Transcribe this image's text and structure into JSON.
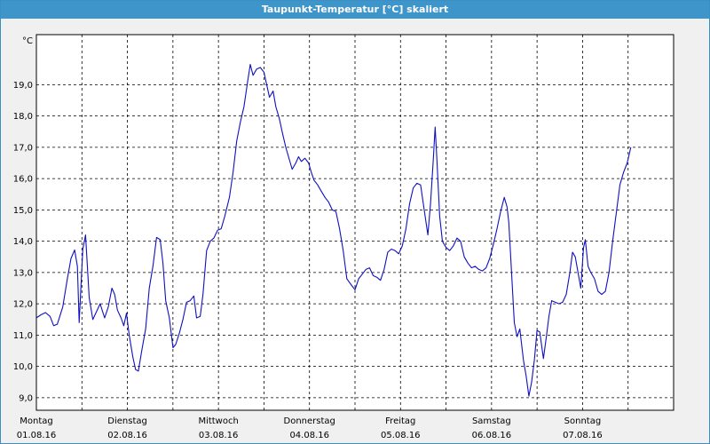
{
  "window": {
    "title": "Taupunkt-Temperatur [°C] skaliert"
  },
  "colors": {
    "line": "#1010c0",
    "title_bg": "#3e95c9",
    "plot_bg": "#ffffff",
    "frame_bg": "#f0f0f0"
  },
  "chart_data": {
    "type": "line",
    "title": "Taupunkt-Temperatur [°C] skaliert",
    "ylabel": "°C",
    "ylim": [
      8.6,
      20.6
    ],
    "xlim": [
      0,
      7
    ],
    "grid": true,
    "yticks": [
      "9,0",
      "10,0",
      "11,0",
      "12,0",
      "13,0",
      "14,0",
      "15,0",
      "16,0",
      "17,0",
      "18,0",
      "19,0"
    ],
    "ytick_values": [
      9,
      10,
      11,
      12,
      13,
      14,
      15,
      16,
      17,
      18,
      19
    ],
    "xticks": [
      {
        "day": "Montag",
        "date": "01.08.16",
        "at": 0
      },
      {
        "day": "Dienstag",
        "date": "02.08.16",
        "at": 1
      },
      {
        "day": "Mittwoch",
        "date": "03.08.16",
        "at": 2
      },
      {
        "day": "Donnerstag",
        "date": "04.08.16",
        "at": 3
      },
      {
        "day": "Freitag",
        "date": "05.08.16",
        "at": 4
      },
      {
        "day": "Samstag",
        "date": "06.08.16",
        "at": 5
      },
      {
        "day": "Sonntag",
        "date": "07.08.16",
        "at": 6
      }
    ],
    "series": [
      {
        "points": [
          [
            0.0,
            11.55
          ],
          [
            0.05,
            11.65
          ],
          [
            0.1,
            11.72
          ],
          [
            0.15,
            11.6
          ],
          [
            0.19,
            11.3
          ],
          [
            0.23,
            11.35
          ],
          [
            0.29,
            11.9
          ],
          [
            0.34,
            12.8
          ],
          [
            0.38,
            13.45
          ],
          [
            0.42,
            13.72
          ],
          [
            0.45,
            13.2
          ],
          [
            0.47,
            11.4
          ],
          [
            0.51,
            13.75
          ],
          [
            0.54,
            14.2
          ],
          [
            0.58,
            12.2
          ],
          [
            0.62,
            11.5
          ],
          [
            0.66,
            11.75
          ],
          [
            0.7,
            12.0
          ],
          [
            0.75,
            11.55
          ],
          [
            0.79,
            11.9
          ],
          [
            0.83,
            12.5
          ],
          [
            0.86,
            12.3
          ],
          [
            0.89,
            11.8
          ],
          [
            0.93,
            11.55
          ],
          [
            0.96,
            11.3
          ],
          [
            0.99,
            11.7
          ],
          [
            1.02,
            11.0
          ],
          [
            1.06,
            10.3
          ],
          [
            1.09,
            9.9
          ],
          [
            1.12,
            9.85
          ],
          [
            1.16,
            10.55
          ],
          [
            1.2,
            11.2
          ],
          [
            1.24,
            12.5
          ],
          [
            1.28,
            13.2
          ],
          [
            1.32,
            14.12
          ],
          [
            1.36,
            14.05
          ],
          [
            1.39,
            13.3
          ],
          [
            1.42,
            12.1
          ],
          [
            1.46,
            11.55
          ],
          [
            1.5,
            10.6
          ],
          [
            1.53,
            10.7
          ],
          [
            1.57,
            11.05
          ],
          [
            1.61,
            11.5
          ],
          [
            1.65,
            12.05
          ],
          [
            1.69,
            12.1
          ],
          [
            1.73,
            12.25
          ],
          [
            1.76,
            11.55
          ],
          [
            1.8,
            11.6
          ],
          [
            1.83,
            12.3
          ],
          [
            1.87,
            13.7
          ],
          [
            1.91,
            14.0
          ],
          [
            1.95,
            14.1
          ],
          [
            1.99,
            14.35
          ],
          [
            2.03,
            14.4
          ],
          [
            2.07,
            14.8
          ],
          [
            2.12,
            15.4
          ],
          [
            2.16,
            16.2
          ],
          [
            2.2,
            17.2
          ],
          [
            2.24,
            17.8
          ],
          [
            2.28,
            18.3
          ],
          [
            2.32,
            19.1
          ],
          [
            2.35,
            19.65
          ],
          [
            2.38,
            19.3
          ],
          [
            2.42,
            19.5
          ],
          [
            2.46,
            19.55
          ],
          [
            2.5,
            19.4
          ],
          [
            2.53,
            19.0
          ],
          [
            2.56,
            18.6
          ],
          [
            2.6,
            18.8
          ],
          [
            2.63,
            18.3
          ],
          [
            2.67,
            17.9
          ],
          [
            2.7,
            17.5
          ],
          [
            2.74,
            17.0
          ],
          [
            2.78,
            16.6
          ],
          [
            2.81,
            16.3
          ],
          [
            2.85,
            16.5
          ],
          [
            2.88,
            16.7
          ],
          [
            2.91,
            16.55
          ],
          [
            2.95,
            16.65
          ],
          [
            2.99,
            16.5
          ],
          [
            3.02,
            16.2
          ],
          [
            3.05,
            15.95
          ],
          [
            3.09,
            15.8
          ],
          [
            3.13,
            15.6
          ],
          [
            3.17,
            15.4
          ],
          [
            3.21,
            15.25
          ],
          [
            3.25,
            15.0
          ],
          [
            3.29,
            14.95
          ],
          [
            3.33,
            14.4
          ],
          [
            3.37,
            13.7
          ],
          [
            3.41,
            12.8
          ],
          [
            3.46,
            12.6
          ],
          [
            3.5,
            12.45
          ],
          [
            3.54,
            12.8
          ],
          [
            3.58,
            12.95
          ],
          [
            3.62,
            13.1
          ],
          [
            3.66,
            13.15
          ],
          [
            3.7,
            12.9
          ],
          [
            3.74,
            12.85
          ],
          [
            3.78,
            12.75
          ],
          [
            3.82,
            13.1
          ],
          [
            3.86,
            13.65
          ],
          [
            3.9,
            13.75
          ],
          [
            3.94,
            13.7
          ],
          [
            3.98,
            13.6
          ],
          [
            4.02,
            13.85
          ],
          [
            4.06,
            14.4
          ],
          [
            4.1,
            15.2
          ],
          [
            4.14,
            15.7
          ],
          [
            4.18,
            15.85
          ],
          [
            4.22,
            15.8
          ],
          [
            4.26,
            15.0
          ],
          [
            4.3,
            14.2
          ],
          [
            4.33,
            15.2
          ],
          [
            4.36,
            16.6
          ],
          [
            4.38,
            17.65
          ],
          [
            4.4,
            16.6
          ],
          [
            4.43,
            14.8
          ],
          [
            4.46,
            14.0
          ],
          [
            4.5,
            13.8
          ],
          [
            4.54,
            13.7
          ],
          [
            4.58,
            13.85
          ],
          [
            4.62,
            14.1
          ],
          [
            4.66,
            14.0
          ],
          [
            4.7,
            13.5
          ],
          [
            4.74,
            13.3
          ],
          [
            4.78,
            13.15
          ],
          [
            4.82,
            13.2
          ],
          [
            4.86,
            13.1
          ],
          [
            4.9,
            13.05
          ],
          [
            4.94,
            13.15
          ],
          [
            4.98,
            13.45
          ],
          [
            5.02,
            13.9
          ],
          [
            5.06,
            14.4
          ],
          [
            5.1,
            14.95
          ],
          [
            5.14,
            15.4
          ],
          [
            5.17,
            15.1
          ],
          [
            5.19,
            14.6
          ],
          [
            5.22,
            13.0
          ],
          [
            5.25,
            11.4
          ],
          [
            5.28,
            10.95
          ],
          [
            5.31,
            11.2
          ],
          [
            5.35,
            10.2
          ],
          [
            5.38,
            9.7
          ],
          [
            5.41,
            9.05
          ],
          [
            5.44,
            9.5
          ],
          [
            5.47,
            10.2
          ],
          [
            5.5,
            11.15
          ],
          [
            5.53,
            11.1
          ],
          [
            5.57,
            10.25
          ],
          [
            5.6,
            10.9
          ],
          [
            5.63,
            11.6
          ],
          [
            5.66,
            12.1
          ],
          [
            5.7,
            12.05
          ],
          [
            5.74,
            12.0
          ],
          [
            5.78,
            12.05
          ],
          [
            5.82,
            12.3
          ],
          [
            5.86,
            13.0
          ],
          [
            5.89,
            13.65
          ],
          [
            5.92,
            13.5
          ],
          [
            5.95,
            13.0
          ],
          [
            5.98,
            12.5
          ],
          [
            6.01,
            13.8
          ],
          [
            6.03,
            14.05
          ],
          [
            6.06,
            13.2
          ],
          [
            6.09,
            13.0
          ],
          [
            6.13,
            12.8
          ],
          [
            6.17,
            12.4
          ],
          [
            6.21,
            12.3
          ],
          [
            6.25,
            12.4
          ],
          [
            6.29,
            13.0
          ],
          [
            6.33,
            14.0
          ],
          [
            6.37,
            14.9
          ],
          [
            6.41,
            15.8
          ],
          [
            6.45,
            16.2
          ],
          [
            6.49,
            16.5
          ],
          [
            6.53,
            17.0
          ]
        ]
      }
    ]
  }
}
